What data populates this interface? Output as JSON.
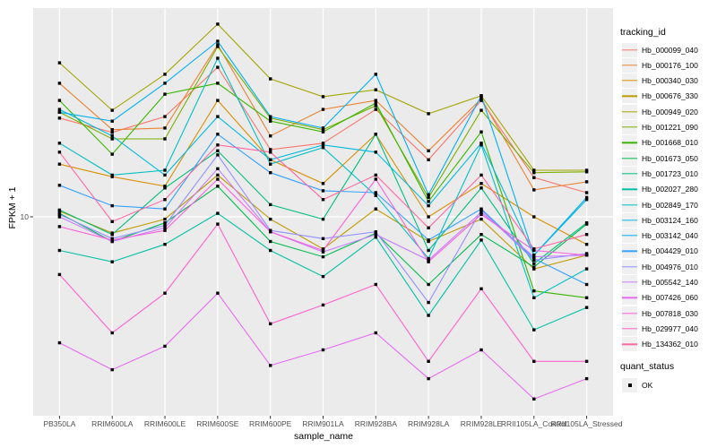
{
  "figure": {
    "panel_bg": "#EBEBEB",
    "grid_color": "#FFFFFF",
    "marker_color": "#000000",
    "tick_color": "#333333",
    "tick_label_color": "#4D4D4D",
    "legend_key_bg": "#F0F0F0"
  },
  "axes": {
    "y_title": "FPKM + 1",
    "x_title": "sample_name",
    "y_tick_labels": [
      "10"
    ],
    "y_scale": "log10"
  },
  "legend": {
    "tracking_title": "tracking_id",
    "quant_title": "quant_status",
    "quant_items": [
      {
        "label": "OK",
        "marker": "black-square"
      }
    ]
  },
  "chart_data": {
    "type": "line",
    "title": "",
    "xlabel": "sample_name",
    "ylabel": "FPKM + 1",
    "y_scale": "log10",
    "y_axis_ticks": [
      10
    ],
    "ylim_approx": [
      1.8,
      60
    ],
    "grid": "major-white-on-gray",
    "legend_position": "right",
    "point_marker": "filled-black-square (quant_status = OK)",
    "x_categories": [
      "PB350LA",
      "RRIM600LA",
      "RRIM600LE",
      "RRIM600SE",
      "RRIM600PE",
      "RRIM901LA",
      "RRIM928BA",
      "RRIM928LA",
      "RRIM928LE",
      "RRII105LA_Control",
      "RRII105LA_Stressed"
    ],
    "series": [
      {
        "name": "Hb_000099_040",
        "color": "#F8766D",
        "values": [
          23.3,
          20.6,
          23.6,
          36.0,
          17.8,
          18.8,
          25.1,
          16.3,
          27.1,
          14.0,
          12.3
        ]
      },
      {
        "name": "Hb_000176_100",
        "color": "#EA8331",
        "values": [
          31.4,
          21.1,
          21.4,
          43.7,
          20.0,
          25.1,
          27.1,
          17.6,
          27.5,
          12.6,
          13.5
        ]
      },
      {
        "name": "Hb_000340_030",
        "color": "#D89000",
        "values": [
          15.7,
          14.1,
          13.0,
          27.1,
          16.3,
          13.3,
          20.3,
          10.0,
          13.3,
          10.0,
          7.9
        ]
      },
      {
        "name": "Hb_000676_330",
        "color": "#C09B00",
        "values": [
          10.5,
          8.7,
          9.8,
          14.3,
          9.8,
          7.6,
          10.7,
          8.1,
          9.8,
          6.4,
          7.2
        ]
      },
      {
        "name": "Hb_000949_020",
        "color": "#A3A500",
        "values": [
          37.4,
          24.9,
          33.9,
          52.1,
          32.6,
          28.0,
          29.7,
          24.2,
          28.2,
          14.9,
          14.9
        ]
      },
      {
        "name": "Hb_001221_090",
        "color": "#7CAE00",
        "values": [
          24.5,
          19.5,
          19.5,
          43.0,
          23.3,
          21.1,
          25.9,
          11.8,
          24.9,
          14.6,
          14.7
        ]
      },
      {
        "name": "Hb_001668_010",
        "color": "#39B600",
        "values": [
          27.1,
          17.1,
          28.6,
          31.4,
          22.7,
          20.7,
          26.5,
          11.4,
          20.7,
          5.3,
          5.0
        ]
      },
      {
        "name": "Hb_001673_050",
        "color": "#00BB4E",
        "values": [
          10.3,
          8.1,
          9.5,
          13.0,
          8.1,
          7.1,
          8.7,
          5.6,
          8.6,
          6.5,
          9.4
        ]
      },
      {
        "name": "Hb_001723_010",
        "color": "#00BF7D",
        "values": [
          10.6,
          8.6,
          12.8,
          17.6,
          11.1,
          9.8,
          20.3,
          7.5,
          12.8,
          6.7,
          9.5
        ]
      },
      {
        "name": "Hb_002027_280",
        "color": "#00C1A3",
        "values": [
          7.5,
          6.8,
          7.9,
          10.3,
          7.5,
          6.0,
          8.4,
          4.3,
          8.2,
          3.8,
          4.6
        ]
      },
      {
        "name": "Hb_002849_170",
        "color": "#00BFC4",
        "values": [
          18.8,
          14.3,
          14.9,
          38.9,
          15.7,
          18.1,
          12.0,
          7.0,
          18.5,
          5.0,
          6.4
        ]
      },
      {
        "name": "Hb_003124_160",
        "color": "#00BAE0",
        "values": [
          25.1,
          20.0,
          14.3,
          23.6,
          16.3,
          18.5,
          17.4,
          11.0,
          18.8,
          7.2,
          11.6
        ]
      },
      {
        "name": "Hb_003142_040",
        "color": "#00B0F6",
        "values": [
          24.5,
          22.7,
          31.4,
          45.0,
          23.6,
          21.4,
          33.9,
          12.1,
          28.2,
          7.2,
          11.8
        ]
      },
      {
        "name": "Hb_004429_010",
        "color": "#35A2FF",
        "values": [
          13.1,
          11.0,
          10.7,
          20.3,
          14.6,
          12.5,
          12.3,
          8.2,
          10.7,
          7.0,
          5.6
        ]
      },
      {
        "name": "Hb_004976_010",
        "color": "#9590FF",
        "values": [
          10.2,
          8.3,
          9.3,
          17.0,
          8.9,
          8.3,
          8.8,
          4.8,
          10.6,
          6.9,
          7.3
        ]
      },
      {
        "name": "Hb_005542_140",
        "color": "#C77CFF",
        "values": [
          10.0,
          8.1,
          9.1,
          15.1,
          8.8,
          7.4,
          8.6,
          6.9,
          10.4,
          7.1,
          7.2
        ]
      },
      {
        "name": "Hb_007426_060",
        "color": "#E76BF3",
        "values": [
          3.4,
          2.7,
          3.3,
          5.2,
          2.8,
          3.2,
          3.7,
          2.5,
          3.2,
          2.1,
          2.5
        ]
      },
      {
        "name": "Hb_007818_030",
        "color": "#FA62DB",
        "values": [
          9.2,
          8.2,
          8.9,
          13.8,
          8.8,
          7.5,
          13.8,
          6.8,
          10.2,
          7.5,
          7.2
        ]
      },
      {
        "name": "Hb_029977_040",
        "color": "#FF61CC",
        "values": [
          6.1,
          3.7,
          5.2,
          9.4,
          4.0,
          4.7,
          5.6,
          2.9,
          5.4,
          2.9,
          2.9
        ]
      },
      {
        "name": "Hb_134362_010",
        "color": "#FF67A4",
        "values": [
          17.4,
          9.6,
          11.6,
          18.5,
          17.4,
          11.6,
          14.3,
          9.1,
          14.3,
          7.6,
          8.6
        ]
      }
    ]
  }
}
